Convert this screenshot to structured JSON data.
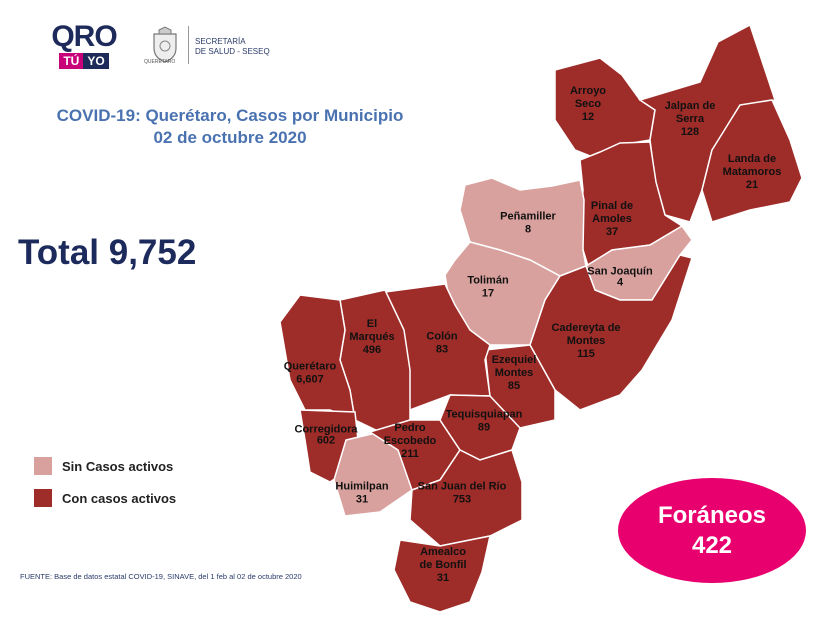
{
  "header": {
    "logo_main": "QRO",
    "logo_tu": "TÚ",
    "logo_yo": "YO",
    "seal_label": "QUERÉTARO",
    "agency_line1": "SECRETARÍA",
    "agency_line2": "DE SALUD - SESEQ"
  },
  "title_line1": "COVID-19: Querétaro, Casos por Municipio",
  "title_line2": "02 de octubre 2020",
  "total": "Total 9,752",
  "legend": [
    {
      "label": "Sin Casos activos",
      "color": "#d9a19d"
    },
    {
      "label": "Con casos activos",
      "color": "#9e2c28"
    }
  ],
  "colors": {
    "active": "#9e2c28",
    "inactive": "#d9a19d",
    "border": "#ffffff",
    "foraneos": "#e8006e"
  },
  "source": "FUENTE:  Base de datos estatal COVID-19,  SINAVE,  del 1 feb al 02 de octubre 2020",
  "foraneos": {
    "label": "Foráneos",
    "value": "422"
  },
  "municipalities": [
    {
      "id": "arroyo-seco",
      "name_lines": [
        "Arroyo",
        "Seco"
      ],
      "cases": "12",
      "active": true
    },
    {
      "id": "jalpan",
      "name_lines": [
        "Jalpan de",
        "Serra"
      ],
      "cases": "128",
      "active": true
    },
    {
      "id": "landa",
      "name_lines": [
        "Landa de",
        "Matamoros"
      ],
      "cases": "21",
      "active": true
    },
    {
      "id": "pinal",
      "name_lines": [
        "Pinal de",
        "Amoles"
      ],
      "cases": "37",
      "active": true
    },
    {
      "id": "san-joaquin",
      "name_lines": [
        "San Joaquín"
      ],
      "cases": "4",
      "active": false
    },
    {
      "id": "penamiller",
      "name_lines": [
        "Peñamiller"
      ],
      "cases": "8",
      "active": false
    },
    {
      "id": "toliman",
      "name_lines": [
        "Tolimán"
      ],
      "cases": "17",
      "active": false
    },
    {
      "id": "cadereyta",
      "name_lines": [
        "Cadereyta de",
        "Montes"
      ],
      "cases": "115",
      "active": true
    },
    {
      "id": "ezequiel",
      "name_lines": [
        "Ezequiel",
        "Montes"
      ],
      "cases": "85",
      "active": true
    },
    {
      "id": "colon",
      "name_lines": [
        "Colón"
      ],
      "cases": "83",
      "active": true
    },
    {
      "id": "el-marques",
      "name_lines": [
        "El",
        "Marqués"
      ],
      "cases": "496",
      "active": true
    },
    {
      "id": "queretaro",
      "name_lines": [
        "Querétaro"
      ],
      "cases": "6,607",
      "active": true
    },
    {
      "id": "corregidora",
      "name_lines": [
        "Corregidora"
      ],
      "cases": "602",
      "active": true
    },
    {
      "id": "huimilpan",
      "name_lines": [
        "Huimilpan"
      ],
      "cases": "31",
      "active": false
    },
    {
      "id": "pedro-escobedo",
      "name_lines": [
        "Pedro",
        "Escobedo"
      ],
      "cases": "211",
      "active": true
    },
    {
      "id": "tequisquiapan",
      "name_lines": [
        "Tequisquiapan"
      ],
      "cases": "89",
      "active": true
    },
    {
      "id": "san-juan",
      "name_lines": [
        "San Juan del Río"
      ],
      "cases": "753",
      "active": true
    },
    {
      "id": "amealco",
      "name_lines": [
        "Amealco",
        "de Bonfil"
      ],
      "cases": "31",
      "active": true
    }
  ]
}
